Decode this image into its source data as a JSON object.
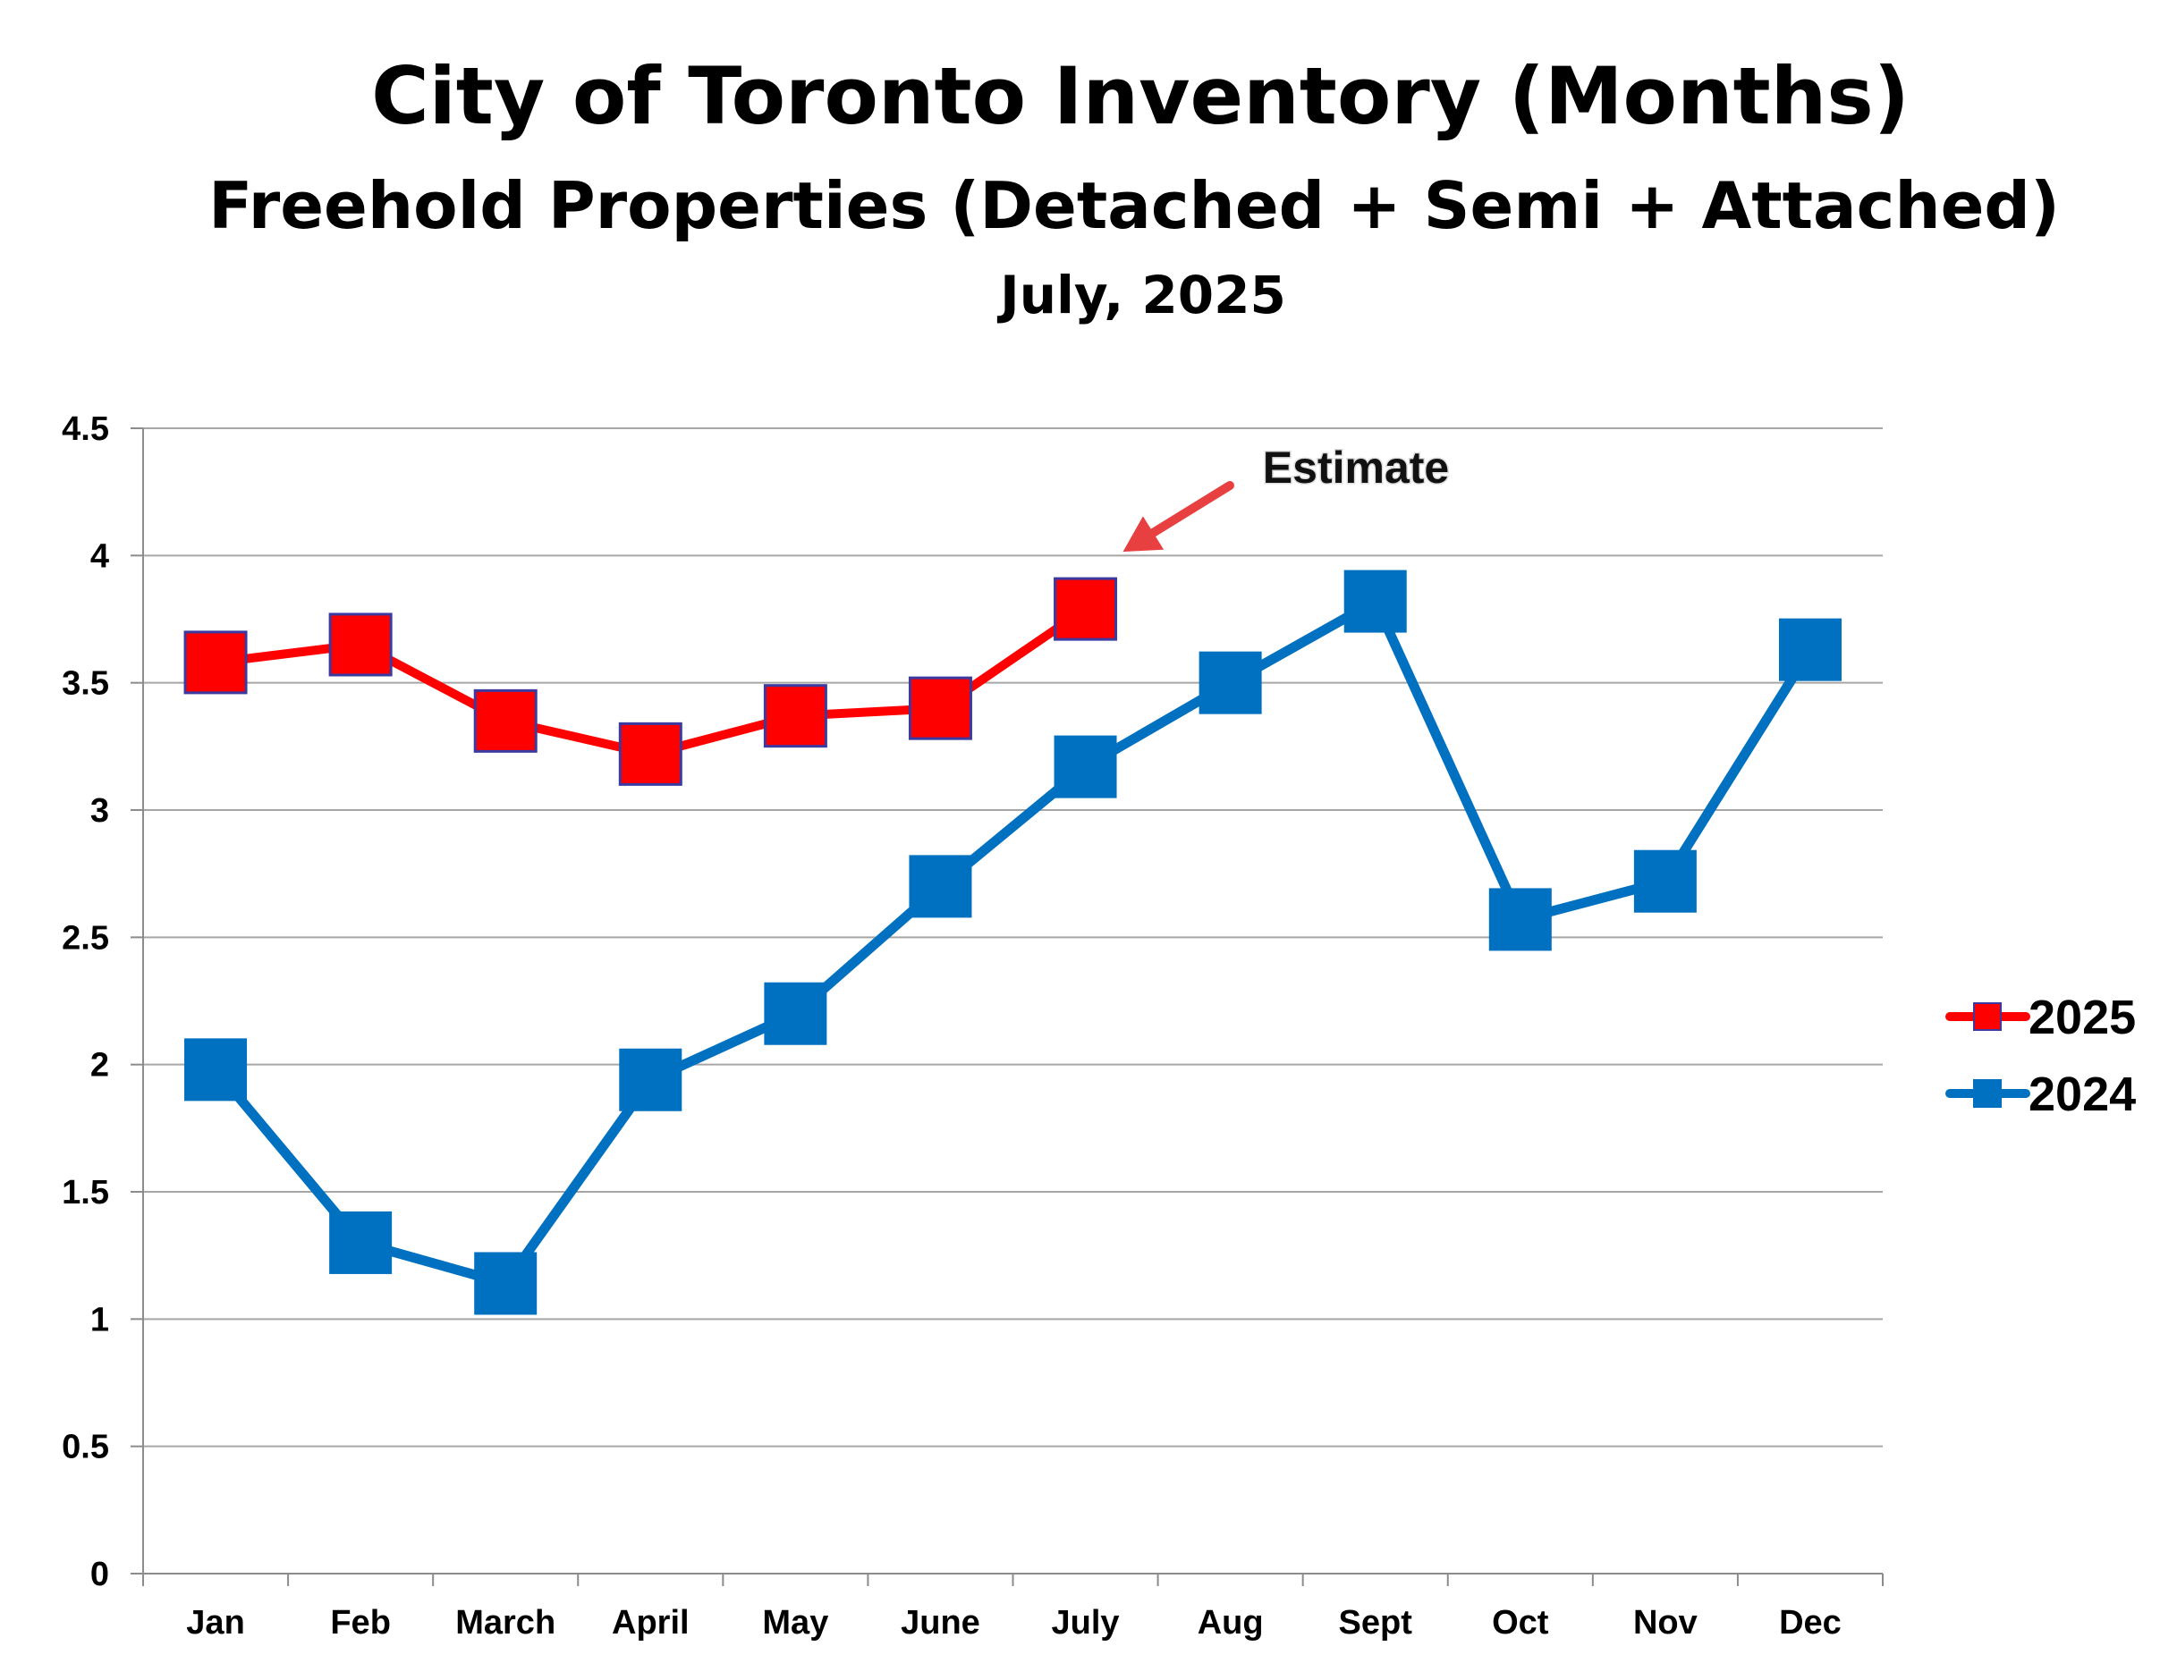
{
  "chart_data": {
    "type": "line",
    "title": "City of Toronto Inventory (Months)",
    "subtitle": "Freehold Properties (Detached + Semi + Attached)",
    "date_label": "July, 2025",
    "categories": [
      "Jan",
      "Feb",
      "March",
      "April",
      "May",
      "June",
      "July",
      "Aug",
      "Sept",
      "Oct",
      "Nov",
      "Dec"
    ],
    "ylim": [
      0,
      4.5
    ],
    "yticks": [
      "0",
      "0.5",
      "1",
      "1.5",
      "2",
      "2.5",
      "3",
      "3.5",
      "4",
      "4.5"
    ],
    "grid": true,
    "legend_position": "right",
    "series": [
      {
        "name": "2025",
        "color": "#ff0000",
        "marker_border": "#3a3aa0",
        "values": [
          3.58,
          3.65,
          3.35,
          3.22,
          3.37,
          3.4,
          3.79,
          null,
          null,
          null,
          null,
          null
        ]
      },
      {
        "name": "2024",
        "color": "#0070c0",
        "marker_border": "#0070c0",
        "values": [
          1.98,
          1.3,
          1.14,
          1.94,
          2.2,
          2.7,
          3.17,
          3.5,
          3.82,
          2.57,
          2.72,
          3.63
        ]
      }
    ],
    "annotations": [
      {
        "text": "Estimate",
        "category": "July",
        "arrow_color": "#e84040"
      }
    ]
  }
}
